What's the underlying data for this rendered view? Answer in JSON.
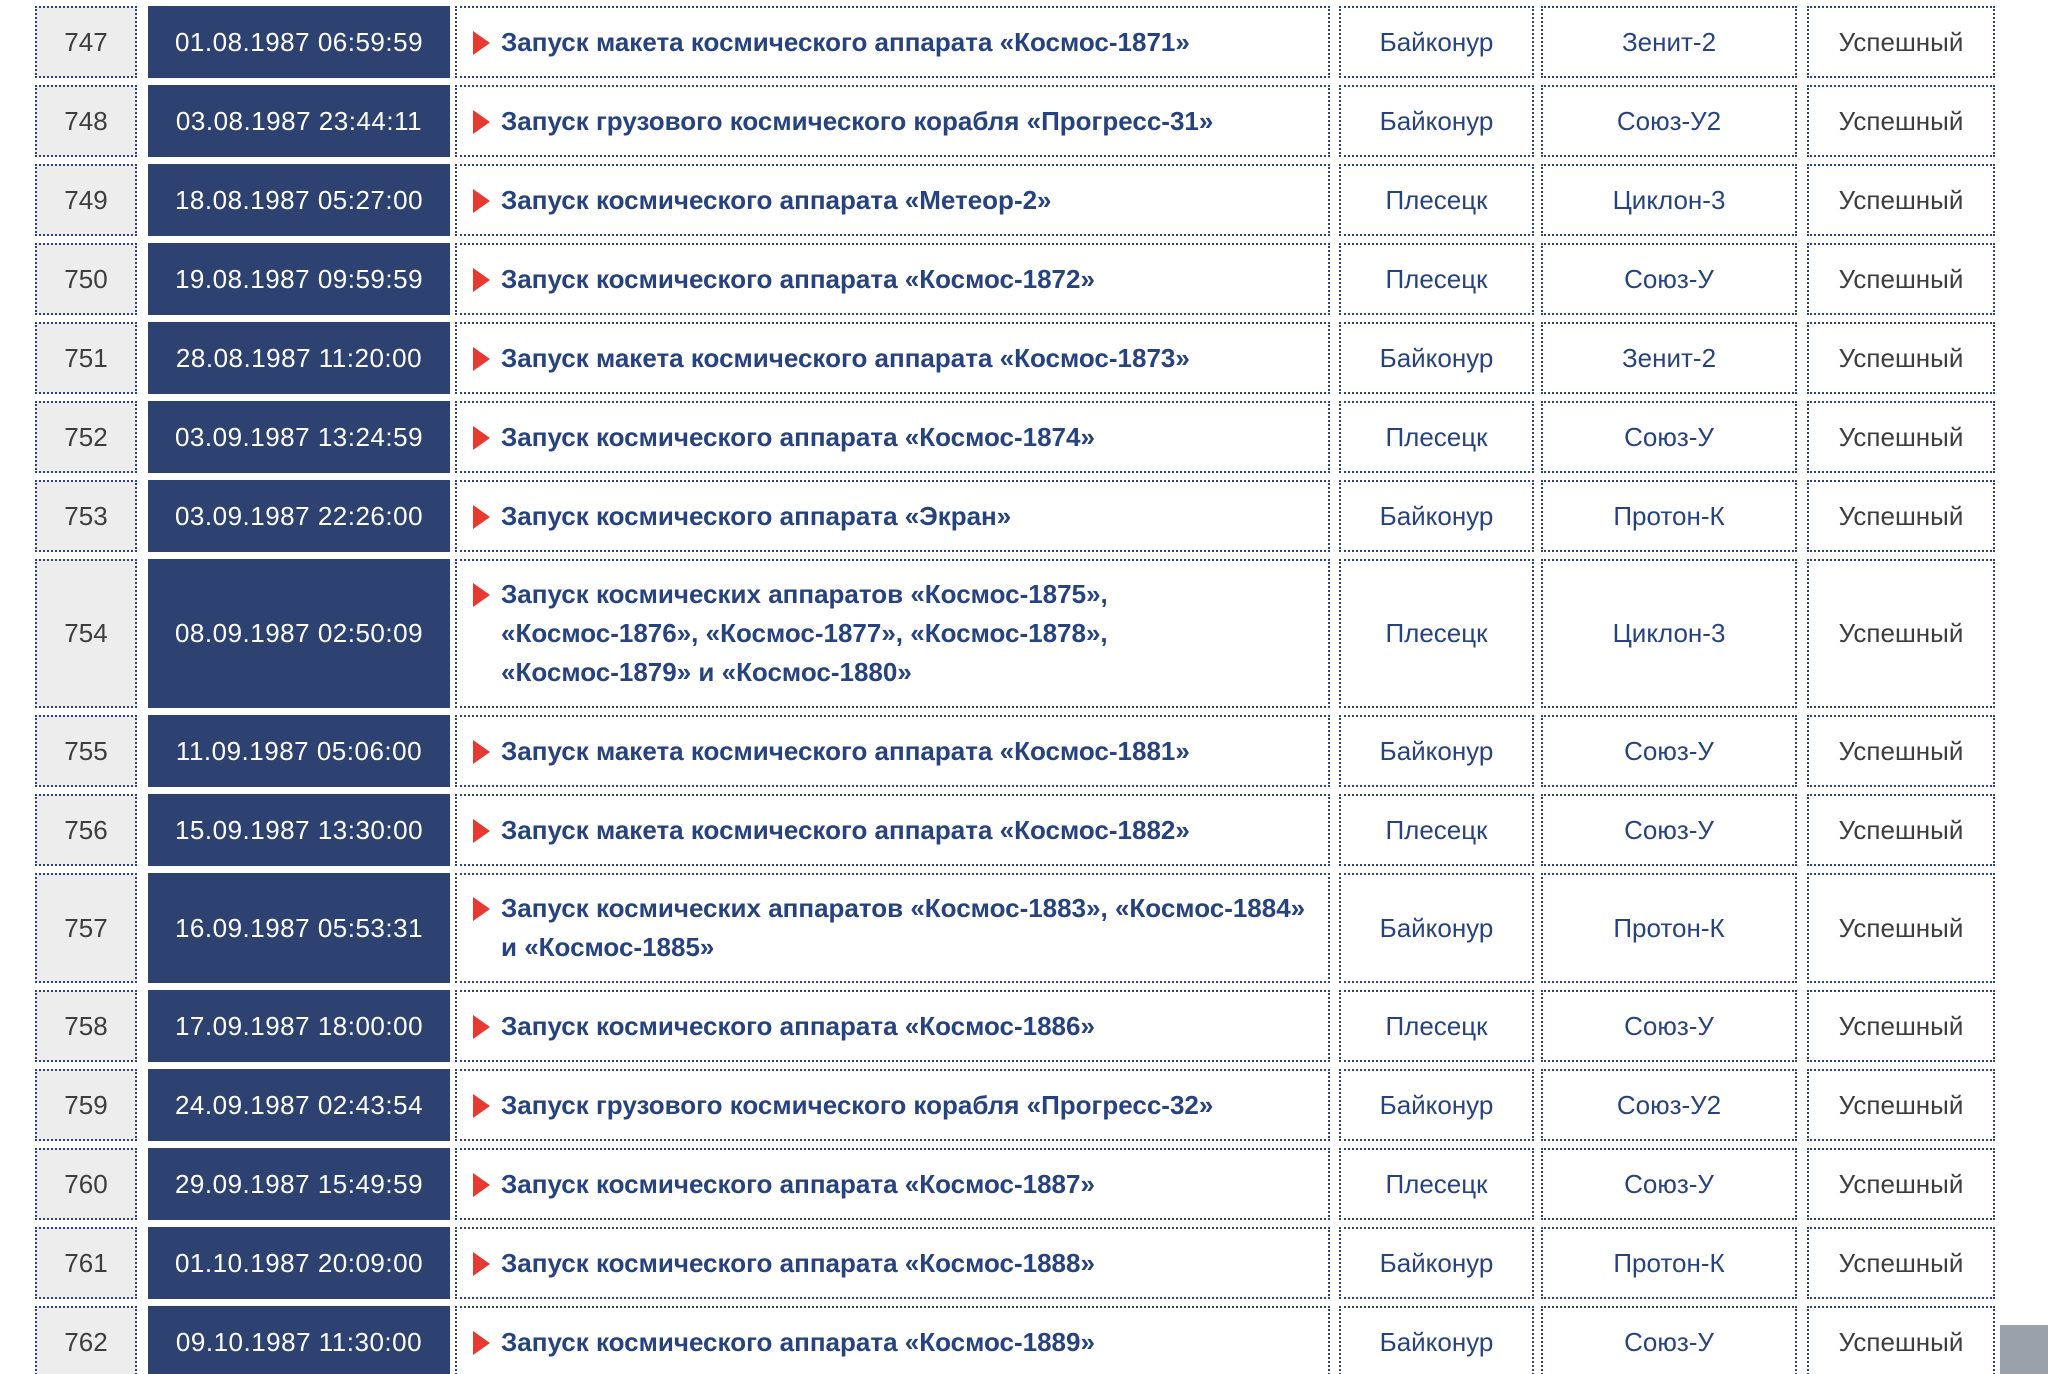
{
  "colors": {
    "date_cell_bg": "#2d4271",
    "link_text": "#27437f",
    "status_text": "#3d3d3d",
    "arrow_red": "#e6392f",
    "cell_border": "#2f4377",
    "num_cell_bg": "#ededed",
    "scroll_button_gray": "#9ba1ab"
  },
  "scroll_top_button": {
    "icon": "chevron-up-icon"
  },
  "table": {
    "rows": [
      {
        "num": "747",
        "datetime": "01.08.1987 06:59:59",
        "description": "Запуск макета космического аппарата «Космос-1871»",
        "site": "Байконур",
        "rocket": "Зенит-2",
        "status": "Успешный"
      },
      {
        "num": "748",
        "datetime": "03.08.1987 23:44:11",
        "description": "Запуск грузового космического корабля «Прогресс-31»",
        "site": "Байконур",
        "rocket": "Союз-У2",
        "status": "Успешный"
      },
      {
        "num": "749",
        "datetime": "18.08.1987 05:27:00",
        "description": "Запуск космического аппарата «Метеор-2»",
        "site": "Плесецк",
        "rocket": "Циклон-3",
        "status": "Успешный"
      },
      {
        "num": "750",
        "datetime": "19.08.1987 09:59:59",
        "description": "Запуск космического аппарата «Космос-1872»",
        "site": "Плесецк",
        "rocket": "Союз-У",
        "status": "Успешный"
      },
      {
        "num": "751",
        "datetime": "28.08.1987 11:20:00",
        "description": "Запуск макета космического аппарата «Космос-1873»",
        "site": "Байконур",
        "rocket": "Зенит-2",
        "status": "Успешный"
      },
      {
        "num": "752",
        "datetime": "03.09.1987 13:24:59",
        "description": "Запуск космического аппарата «Космос-1874»",
        "site": "Плесецк",
        "rocket": "Союз-У",
        "status": "Успешный"
      },
      {
        "num": "753",
        "datetime": "03.09.1987 22:26:00",
        "description": "Запуск космического аппарата «Экран»",
        "site": "Байконур",
        "rocket": "Протон-К",
        "status": "Успешный"
      },
      {
        "num": "754",
        "datetime": "08.09.1987 02:50:09",
        "description": [
          "Запуск космических аппаратов «Космос-1875»,",
          "«Космос-1876», «Космос-1877», «Космос-1878»,",
          "«Космос-1879» и «Космос-1880»"
        ],
        "site": "Плесецк",
        "rocket": "Циклон-3",
        "status": "Успешный"
      },
      {
        "num": "755",
        "datetime": "11.09.1987 05:06:00",
        "description": "Запуск макета космического аппарата «Космос-1881»",
        "site": "Байконур",
        "rocket": "Союз-У",
        "status": "Успешный"
      },
      {
        "num": "756",
        "datetime": "15.09.1987 13:30:00",
        "description": "Запуск макета космического аппарата «Космос-1882»",
        "site": "Плесецк",
        "rocket": "Союз-У",
        "status": "Успешный"
      },
      {
        "num": "757",
        "datetime": "16.09.1987 05:53:31",
        "description": [
          "Запуск космических аппаратов «Космос-1883», «Космос-1884»",
          "и «Космос-1885»"
        ],
        "site": "Байконур",
        "rocket": "Протон-К",
        "status": "Успешный"
      },
      {
        "num": "758",
        "datetime": "17.09.1987 18:00:00",
        "description": "Запуск космического аппарата «Космос-1886»",
        "site": "Плесецк",
        "rocket": "Союз-У",
        "status": "Успешный"
      },
      {
        "num": "759",
        "datetime": "24.09.1987 02:43:54",
        "description": "Запуск грузового космического корабля «Прогресс-32»",
        "site": "Байконур",
        "rocket": "Союз-У2",
        "status": "Успешный"
      },
      {
        "num": "760",
        "datetime": "29.09.1987 15:49:59",
        "description": "Запуск космического аппарата «Космос-1887»",
        "site": "Плесецк",
        "rocket": "Союз-У",
        "status": "Успешный"
      },
      {
        "num": "761",
        "datetime": "01.10.1987 20:09:00",
        "description": "Запуск космического аппарата «Космос-1888»",
        "site": "Байконур",
        "rocket": "Протон-К",
        "status": "Успешный"
      },
      {
        "num": "762",
        "datetime": "09.10.1987 11:30:00",
        "description": "Запуск космического аппарата «Космос-1889»",
        "site": "Байконур",
        "rocket": "Союз-У",
        "status": "Успешный"
      }
    ]
  }
}
